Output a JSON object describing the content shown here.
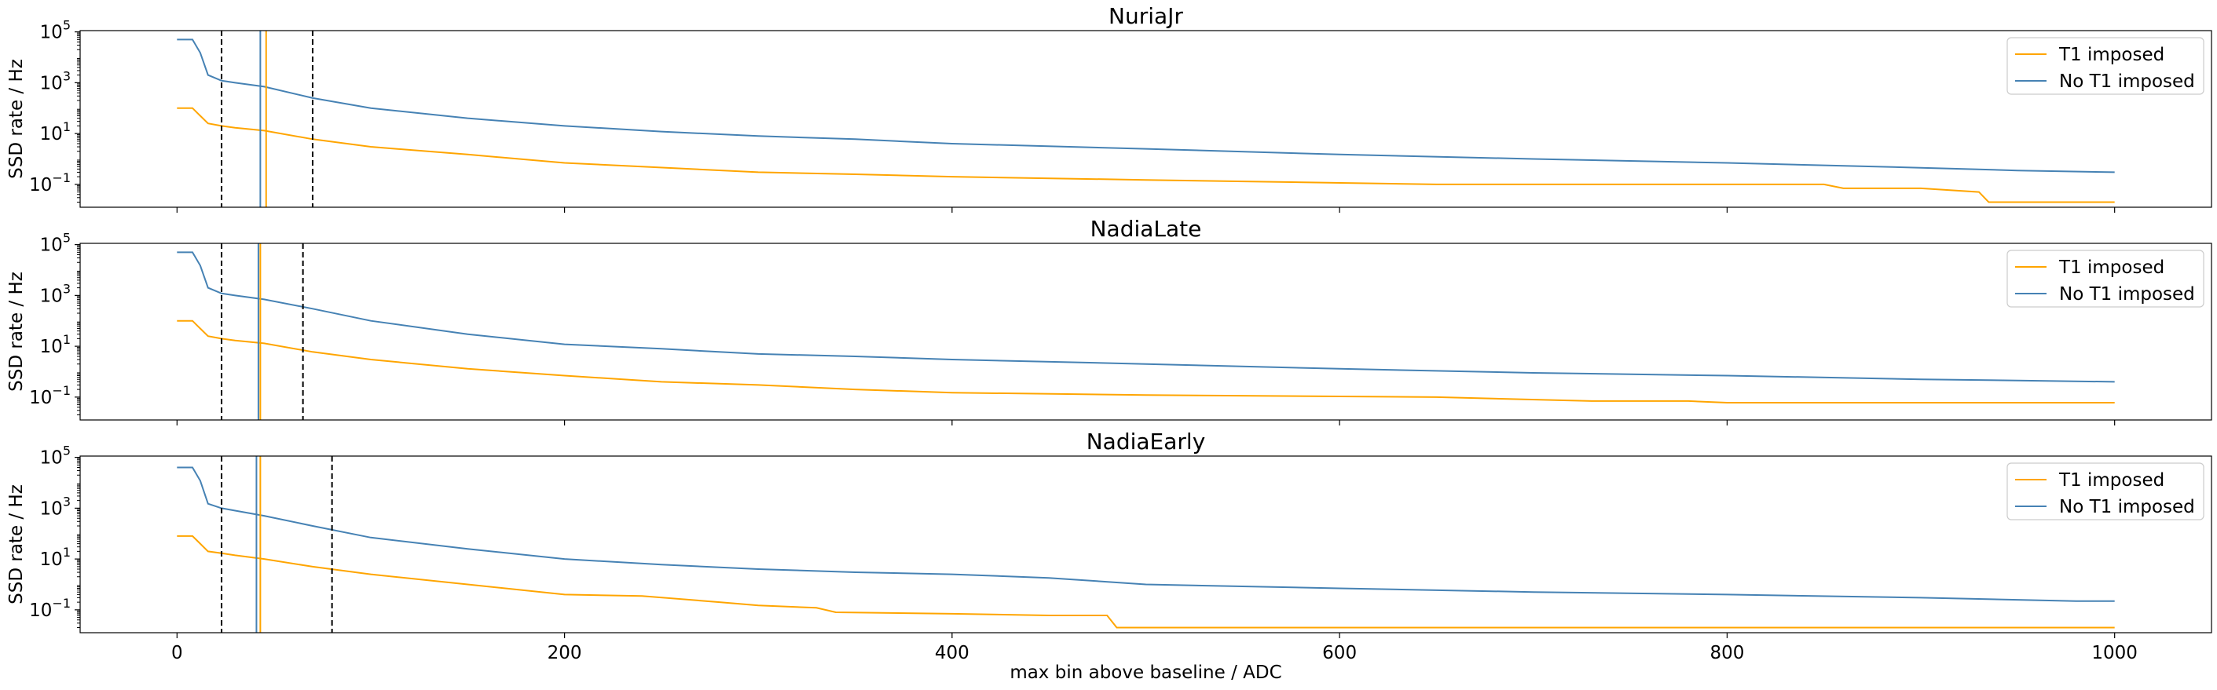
{
  "chart_data": {
    "type": "line",
    "shared_x_axis": {
      "label": "max bin above baseline / ADC",
      "xlim": [
        -50,
        1050
      ],
      "ticks": [
        0,
        200,
        400,
        600,
        800,
        1000
      ],
      "tick_labels": [
        "0",
        "200",
        "400",
        "600",
        "800",
        "1000"
      ]
    },
    "y_scale": "log",
    "legend_position": "upper right",
    "grid": false,
    "colors": {
      "T1 imposed": "#ffa500",
      "No T1 imposed": "#4682b4",
      "threshold_dashed": "#000000"
    },
    "panels": [
      {
        "title": "NuriaJr",
        "ylabel": "SSD rate / Hz",
        "ylim_exp": [
          -1.9,
          5.05
        ],
        "ytick_exps": [
          -1,
          1,
          3,
          5
        ],
        "dashed_vlines": [
          23,
          70
        ],
        "solid_vlines": [
          {
            "series": "No T1 imposed",
            "x": 43
          },
          {
            "series": "T1 imposed",
            "x": 46
          }
        ],
        "legend": [
          "T1 imposed",
          "No T1 imposed"
        ],
        "series": [
          {
            "name": "T1 imposed",
            "x": [
              0,
              8,
              12,
              16,
              23,
              30,
              45,
              70,
              100,
              150,
              200,
              240,
              300,
              350,
              400,
              500,
              650,
              760,
              820,
              850,
              860,
              900,
              930,
              935,
              980,
              1000
            ],
            "y": [
              100,
              100,
              50,
              25,
              20,
              17,
              13,
              6,
              3,
              1.5,
              0.7,
              0.5,
              0.3,
              0.25,
              0.2,
              0.15,
              0.1,
              0.1,
              0.1,
              0.1,
              0.07,
              0.07,
              0.05,
              0.02,
              0.02,
              0.02
            ]
          },
          {
            "name": "No T1 imposed",
            "x": [
              0,
              8,
              12,
              16,
              23,
              30,
              45,
              70,
              100,
              150,
              200,
              250,
              300,
              350,
              400,
              500,
              600,
              700,
              800,
              900,
              950,
              1000
            ],
            "y": [
              50000,
              50000,
              15000,
              2000,
              1200,
              1000,
              700,
              250,
              100,
              40,
              20,
              12,
              8,
              6,
              4,
              2.5,
              1.5,
              1,
              0.7,
              0.45,
              0.35,
              0.3
            ]
          }
        ]
      },
      {
        "title": "NadiaLate",
        "ylabel": "SSD rate / Hz",
        "ylim_exp": [
          -1.9,
          5.05
        ],
        "ytick_exps": [
          -1,
          1,
          3,
          5
        ],
        "dashed_vlines": [
          23,
          65
        ],
        "solid_vlines": [
          {
            "series": "No T1 imposed",
            "x": 42
          },
          {
            "series": "T1 imposed",
            "x": 43
          }
        ],
        "legend": [
          "T1 imposed",
          "No T1 imposed"
        ],
        "series": [
          {
            "name": "T1 imposed",
            "x": [
              0,
              8,
              12,
              16,
              23,
              30,
              45,
              70,
              100,
              150,
              200,
              250,
              300,
              350,
              400,
              500,
              650,
              730,
              780,
              800,
              1000
            ],
            "y": [
              100,
              100,
              50,
              25,
              20,
              17,
              13,
              6,
              3,
              1.3,
              0.7,
              0.4,
              0.3,
              0.2,
              0.15,
              0.12,
              0.1,
              0.07,
              0.07,
              0.06,
              0.06
            ]
          },
          {
            "name": "No T1 imposed",
            "x": [
              0,
              8,
              12,
              16,
              23,
              30,
              45,
              70,
              100,
              150,
              200,
              250,
              300,
              350,
              400,
              500,
              600,
              700,
              800,
              900,
              950,
              1000
            ],
            "y": [
              50000,
              50000,
              15000,
              2000,
              1200,
              1000,
              700,
              300,
              100,
              30,
              12,
              8,
              5,
              4,
              3,
              2,
              1.3,
              0.9,
              0.7,
              0.5,
              0.45,
              0.4
            ]
          }
        ]
      },
      {
        "title": "NadiaEarly",
        "ylabel": "SSD rate / Hz",
        "ylim_exp": [
          -1.9,
          5.05
        ],
        "ytick_exps": [
          -1,
          1,
          3,
          5
        ],
        "dashed_vlines": [
          23,
          80
        ],
        "solid_vlines": [
          {
            "series": "No T1 imposed",
            "x": 41
          },
          {
            "series": "T1 imposed",
            "x": 43
          }
        ],
        "legend": [
          "T1 imposed",
          "No T1 imposed"
        ],
        "series": [
          {
            "name": "T1 imposed",
            "x": [
              0,
              8,
              12,
              16,
              23,
              30,
              45,
              70,
              100,
              150,
              200,
              240,
              280,
              300,
              330,
              340,
              400,
              450,
              470,
              480,
              485,
              700,
              1000
            ],
            "y": [
              80,
              80,
              40,
              20,
              17,
              14,
              10,
              5,
              2.5,
              1,
              0.4,
              0.35,
              0.2,
              0.15,
              0.12,
              0.08,
              0.07,
              0.06,
              0.06,
              0.06,
              0.02,
              0.02,
              0.02
            ]
          },
          {
            "name": "No T1 imposed",
            "x": [
              0,
              8,
              12,
              16,
              23,
              30,
              45,
              70,
              100,
              150,
              200,
              250,
              300,
              350,
              400,
              450,
              500,
              600,
              700,
              800,
              900,
              980,
              1000
            ],
            "y": [
              40000,
              40000,
              12000,
              1500,
              1000,
              800,
              500,
              200,
              70,
              25,
              10,
              6,
              4,
              3,
              2.5,
              1.8,
              1,
              0.7,
              0.5,
              0.4,
              0.3,
              0.22,
              0.22
            ]
          }
        ]
      }
    ]
  }
}
